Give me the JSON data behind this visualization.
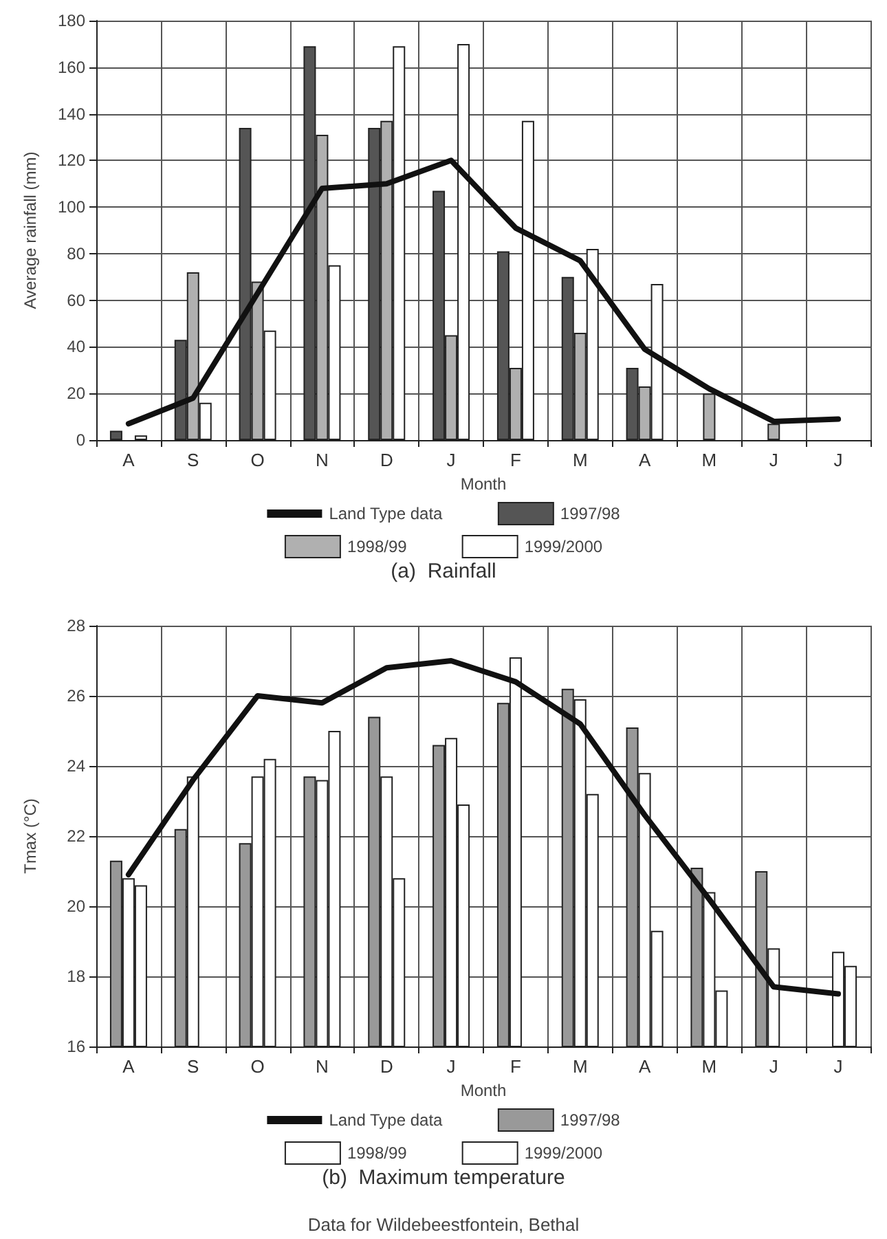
{
  "chart_data": [
    {
      "type": "bar",
      "title": "(a)  Rainfall",
      "xlabel": "Month",
      "ylabel": "Average rainfall (mm)",
      "categories": [
        "A",
        "S",
        "O",
        "N",
        "D",
        "J",
        "F",
        "M",
        "A",
        "M",
        "J",
        "J"
      ],
      "series": [
        {
          "name": "Land Type data",
          "type": "line",
          "color": "#111111",
          "values": [
            7,
            18,
            63,
            108,
            110,
            120,
            91,
            77,
            39,
            22,
            8,
            9
          ]
        },
        {
          "name": "1997/98",
          "color": "#555555",
          "values": [
            4,
            43,
            134,
            169,
            134,
            107,
            81,
            70,
            31,
            null,
            null,
            null
          ]
        },
        {
          "name": "1998/99",
          "color": "#b0b0b0",
          "values": [
            null,
            72,
            68,
            131,
            137,
            45,
            31,
            46,
            23,
            20,
            7,
            null
          ]
        },
        {
          "name": "1999/2000",
          "color": "#ffffff",
          "values": [
            2,
            16,
            47,
            75,
            169,
            170,
            137,
            82,
            67,
            null,
            null,
            null
          ]
        }
      ],
      "ylim": [
        0,
        180
      ],
      "yticks": [
        0,
        20,
        40,
        60,
        80,
        100,
        120,
        140,
        160,
        180
      ],
      "grid": true,
      "legend": "bottom",
      "marker": "none",
      "line_style": "solid"
    },
    {
      "type": "bar",
      "title": "(b)  Maximum temperature",
      "xlabel": "Month",
      "ylabel": "Tmax (°C)",
      "categories": [
        "A",
        "S",
        "O",
        "N",
        "D",
        "J",
        "F",
        "M",
        "A",
        "M",
        "J",
        "J"
      ],
      "series": [
        {
          "name": "Land Type data",
          "type": "line",
          "color": "#111111",
          "values": [
            20.9,
            23.6,
            26.0,
            25.8,
            26.8,
            27.0,
            26.4,
            25.2,
            22.6,
            20.2,
            17.7,
            17.5
          ]
        },
        {
          "name": "1997/98",
          "color": "#999999",
          "values": [
            21.3,
            22.2,
            21.8,
            23.7,
            25.4,
            24.6,
            25.8,
            26.2,
            25.1,
            21.1,
            21.0,
            null
          ]
        },
        {
          "name": "1998/99",
          "color": "#ffffff",
          "values": [
            20.8,
            23.7,
            23.7,
            23.6,
            23.7,
            24.8,
            27.1,
            25.9,
            23.8,
            20.4,
            18.8,
            18.7
          ]
        },
        {
          "name": "1999/2000",
          "color": "#ffffff",
          "values": [
            20.6,
            null,
            24.2,
            25.0,
            20.8,
            22.9,
            null,
            23.2,
            19.3,
            17.6,
            null,
            18.3
          ]
        }
      ],
      "ylim": [
        16,
        28
      ],
      "yticks": [
        16,
        18,
        20,
        22,
        24,
        26,
        28
      ],
      "grid": true,
      "legend": "bottom",
      "marker": "none",
      "line_style": "solid",
      "annotations": [
        "Data for Wildebeestfontein, Bethal"
      ]
    }
  ]
}
